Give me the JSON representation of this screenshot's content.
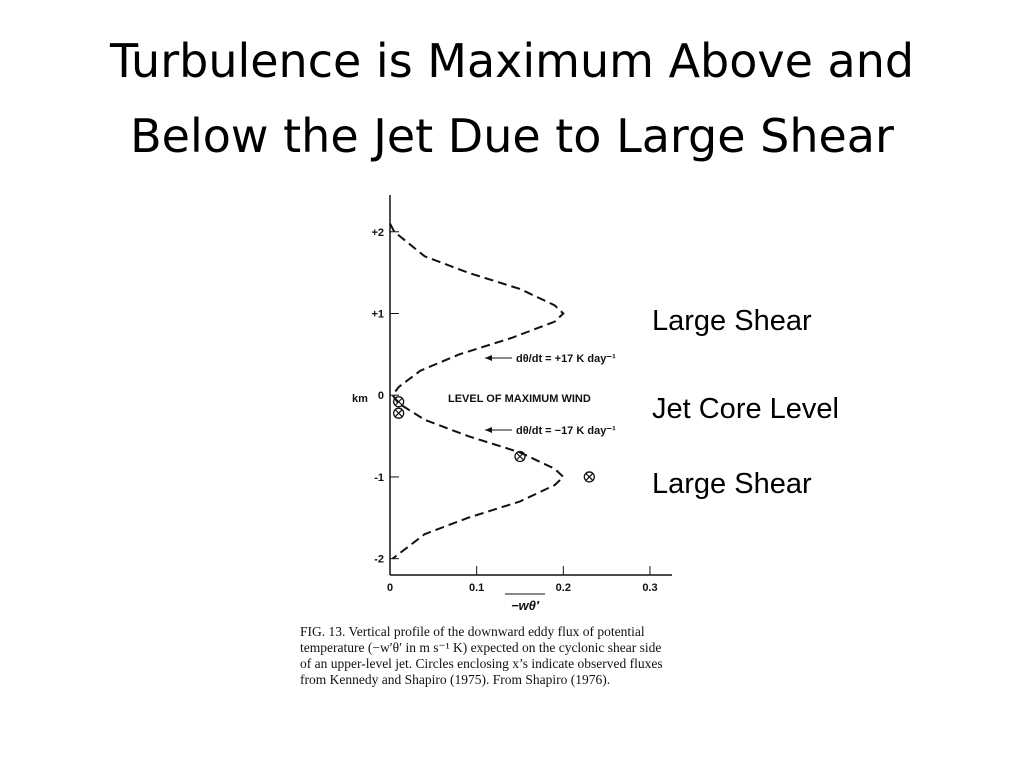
{
  "slide": {
    "title": [
      "Turbulence is Maximum Above and",
      "Below the Jet Due to Large Shear"
    ],
    "side_labels": [
      "Large Shear",
      "Jet Core Level",
      "Large Shear"
    ]
  },
  "chart_data": {
    "type": "line",
    "xlabel": "−wθ′",
    "ylabel": "km",
    "x": [
      0,
      0.005,
      0.04,
      0.09,
      0.15,
      0.19,
      0.2,
      0.19,
      0.14,
      0.08,
      0.035,
      0.01,
      0.003,
      0.01,
      0.04,
      0.09,
      0.15,
      0.19,
      0.2,
      0.19,
      0.15,
      0.09,
      0.04,
      0.003
    ],
    "values": [
      2.1,
      2,
      1.7,
      1.5,
      1.3,
      1.1,
      1,
      0.9,
      0.7,
      0.5,
      0.3,
      0.1,
      0,
      -0.1,
      -0.3,
      -0.5,
      -0.7,
      -0.9,
      -1,
      -1.1,
      -1.3,
      -1.5,
      -1.7,
      -2
    ],
    "points": {
      "x": [
        0.01,
        0.01,
        0.15,
        0.23
      ],
      "values": [
        -0.08,
        -0.22,
        -0.75,
        -1
      ]
    },
    "xlim": [
      0,
      0.32
    ],
    "ylim": [
      -2.2,
      2.45
    ],
    "xticks": [
      0,
      0.1,
      0.2,
      0.3
    ],
    "yticks": [
      -2,
      -1,
      0,
      {
        "value": 1,
        "label": "+1"
      },
      {
        "value": 2,
        "label": "+2"
      }
    ],
    "annotations": [
      "dθ/dt = +17 K day⁻¹",
      "LEVEL OF MAXIMUM WIND",
      "dθ/dt = −17 K day⁻¹"
    ],
    "caption": [
      "FIG. 13. Vertical profile of the downward eddy flux of potential",
      "temperature (−w′θ′ in m s⁻¹ K) expected on the cyclonic shear side",
      "of an upper-level jet. Circles enclosing x’s indicate observed fluxes",
      "from Kennedy and Shapiro (1975). From Shapiro (1976)."
    ]
  }
}
